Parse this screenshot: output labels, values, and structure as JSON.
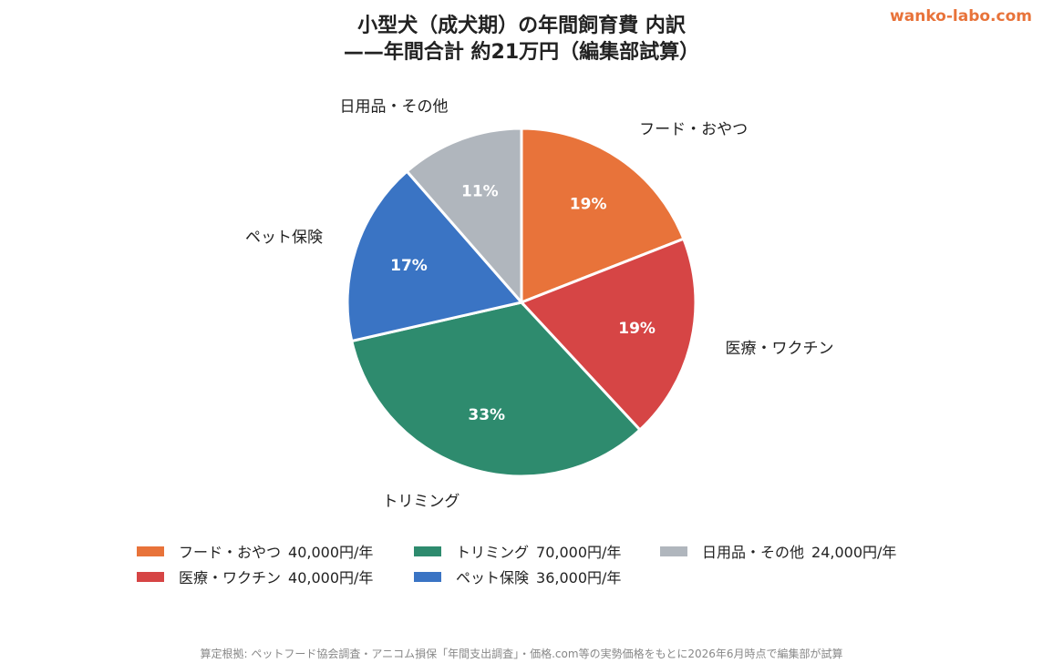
{
  "brand": "wanko-labo.com",
  "chart_data": {
    "type": "pie",
    "title_line1": "小型犬（成犬期）の年間飼育費 内訳",
    "title_line2": "——年間合計 約21万円（編集部試算）",
    "start_angle_deg": 0,
    "direction": "clockwise",
    "slices": [
      {
        "label": "フード・おやつ",
        "value": 40000,
        "percent": "19%",
        "value_label": "40,000円/年",
        "color": "#e8733a"
      },
      {
        "label": "医療・ワクチン",
        "value": 40000,
        "percent": "19%",
        "value_label": "40,000円/年",
        "color": "#d64545"
      },
      {
        "label": "トリミング",
        "value": 70000,
        "percent": "33%",
        "value_label": "70,000円/年",
        "color": "#2e8b6e"
      },
      {
        "label": "ペット保険",
        "value": 36000,
        "percent": "17%",
        "value_label": "36,000円/年",
        "color": "#3a74c4"
      },
      {
        "label": "日用品・その他",
        "value": 24000,
        "percent": "11%",
        "value_label": "24,000円/年",
        "color": "#b0b6bd"
      }
    ],
    "legend_position": "bottom"
  },
  "footnote": "算定根拠: ペットフード協会調査・アニコム損保「年間支出調査」・価格.com等の実勢価格をもとに2026年6月時点で編集部が試算"
}
